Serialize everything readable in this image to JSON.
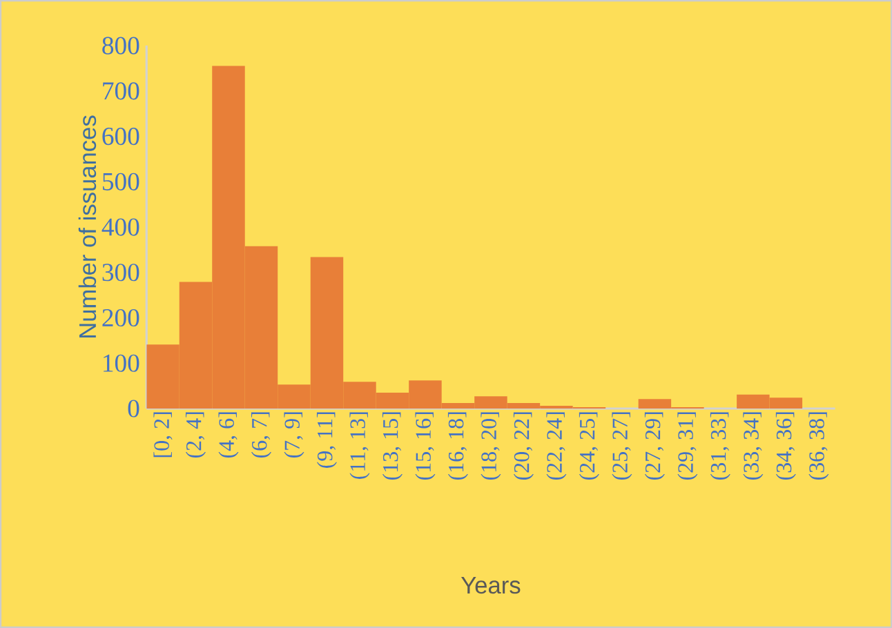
{
  "chart_data": {
    "type": "bar",
    "xlabel": "Years",
    "ylabel": "Number of issuances",
    "categories": [
      "[0, 2]",
      "(2, 4]",
      "(4, 6]",
      "(6, 7]",
      "(7, 9]",
      "(9, 11]",
      "(11, 13]",
      "(13, 15]",
      "(15, 16]",
      "(16, 18]",
      "(18, 20]",
      "(20, 22]",
      "(22, 24]",
      "(24, 25]",
      "(25, 27]",
      "(27, 29]",
      "(29, 31]",
      "(31, 33]",
      "(33, 34]",
      "(34, 36]",
      "(36, 38]"
    ],
    "values": [
      141,
      279,
      755,
      358,
      53,
      334,
      59,
      35,
      62,
      12,
      27,
      12,
      6,
      3,
      0,
      21,
      3,
      0,
      31,
      24,
      0
    ],
    "color": "#e87f38",
    "ylim": [
      0,
      800
    ],
    "yticks": [
      0,
      100,
      200,
      300,
      400,
      500,
      600,
      700,
      800
    ],
    "grid": false
  }
}
